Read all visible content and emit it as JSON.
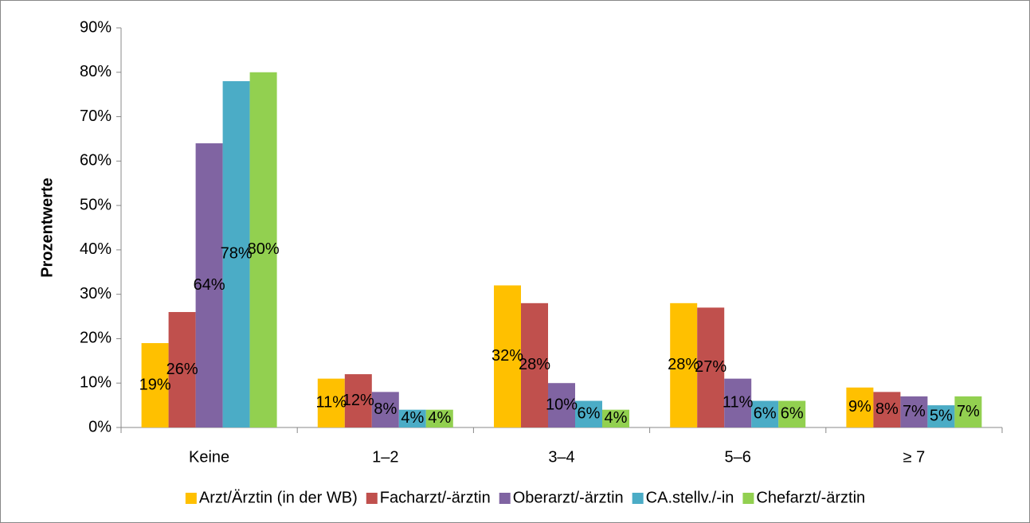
{
  "chart_data": {
    "type": "bar",
    "y_label": "Prozentwerte",
    "categories": [
      "Keine",
      "1–2",
      "3–4",
      "5–6",
      "≥ 7"
    ],
    "series": [
      {
        "name": "Arzt/Ärztin (in der WB)",
        "color": "#FFC000",
        "values": [
          19,
          11,
          32,
          28,
          9
        ],
        "value_labels": [
          "19%",
          "11%",
          "32%",
          "28%",
          "9%"
        ]
      },
      {
        "name": "Facharzt/-ärztin",
        "color": "#C0504D",
        "values": [
          26,
          12,
          28,
          27,
          8
        ],
        "value_labels": [
          "26%",
          "12%",
          "28%",
          "27%",
          "8%"
        ]
      },
      {
        "name": "Oberarzt/-ärztin",
        "color": "#8064A2",
        "values": [
          64,
          8,
          10,
          11,
          7
        ],
        "value_labels": [
          "64%",
          "8%",
          "10%",
          "11%",
          "7%"
        ]
      },
      {
        "name": "CA.stellv./-in",
        "color": "#4BACC6",
        "values": [
          78,
          4,
          6,
          6,
          5
        ],
        "value_labels": [
          "78%",
          "4%",
          "6%",
          "6%",
          "5%"
        ]
      },
      {
        "name": "Chefarzt/-ärztin",
        "color": "#92D050",
        "values": [
          80,
          4,
          4,
          6,
          7
        ],
        "value_labels": [
          "80%",
          "4%",
          "4%",
          "6%",
          "7%"
        ]
      }
    ],
    "ylim": [
      0,
      90
    ],
    "yticks": [
      {
        "value": 0,
        "label": "0%"
      },
      {
        "value": 10,
        "label": "10%"
      },
      {
        "value": 20,
        "label": "20%"
      },
      {
        "value": 30,
        "label": "30%"
      },
      {
        "value": 40,
        "label": "40%"
      },
      {
        "value": 50,
        "label": "50%"
      },
      {
        "value": 60,
        "label": "60%"
      },
      {
        "value": 70,
        "label": "70%"
      },
      {
        "value": 80,
        "label": "80%"
      },
      {
        "value": 90,
        "label": "90%"
      }
    ],
    "grid": false,
    "legend": "bottom"
  }
}
